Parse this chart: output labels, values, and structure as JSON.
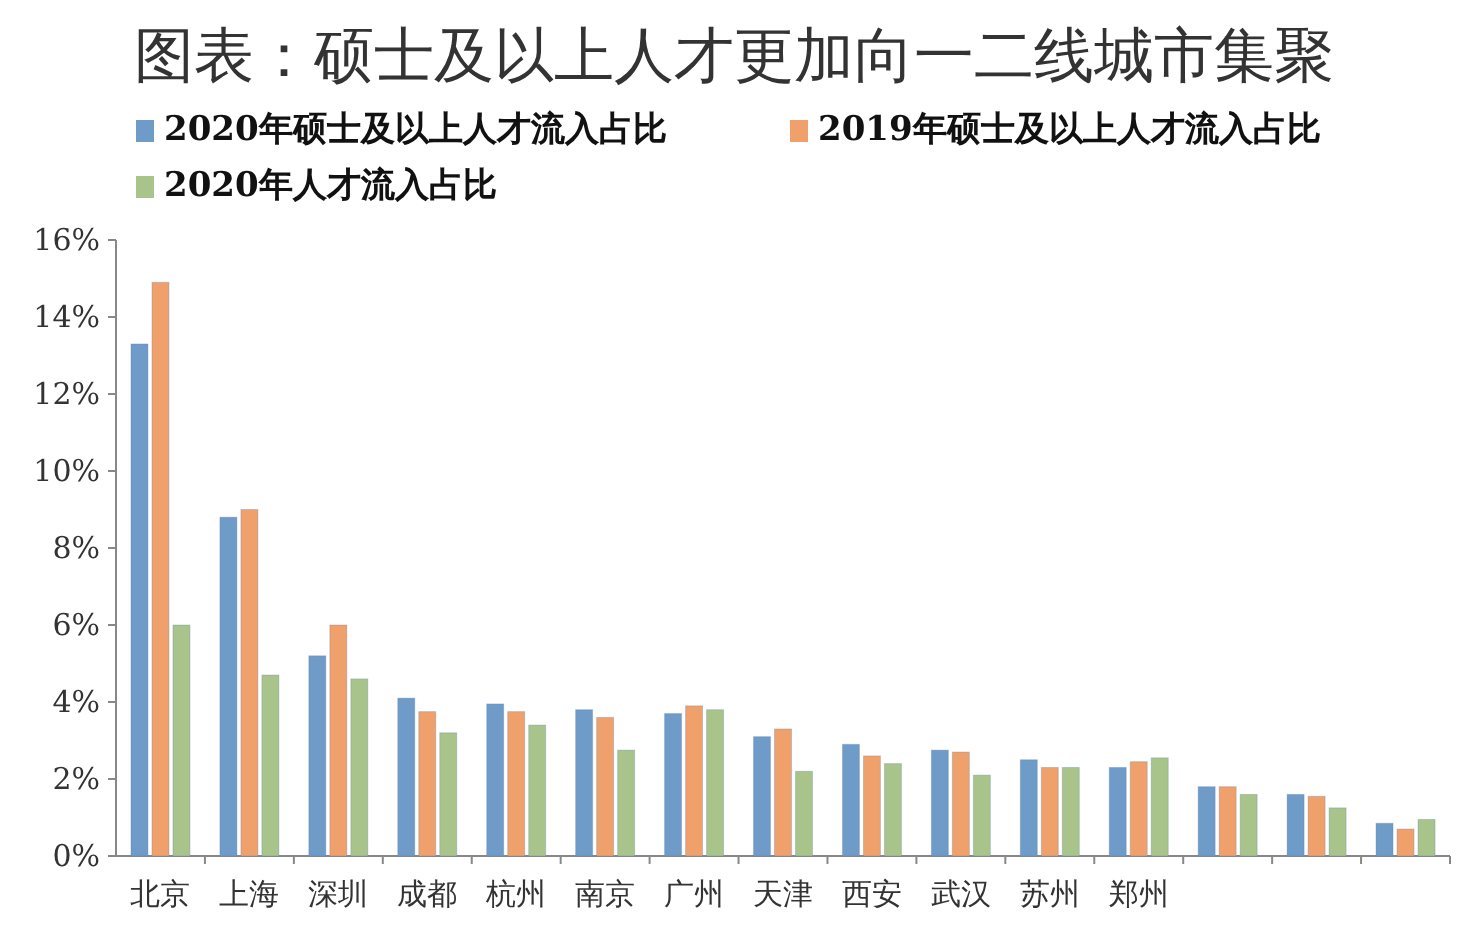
{
  "chart_data": {
    "type": "bar",
    "title": "图表：硕士及以上人才更加向一二线城市集聚",
    "categories": [
      "北京",
      "上海",
      "深圳",
      "成都",
      "杭州",
      "南京",
      "广州",
      "天津",
      "西安",
      "武汉",
      "苏州",
      "郑州",
      null,
      null,
      null
    ],
    "series": [
      {
        "name": "2020年硕士及以上人才流入占比",
        "color": "#6f9bc9",
        "values": [
          13.3,
          8.8,
          5.2,
          4.1,
          3.95,
          3.8,
          3.7,
          3.1,
          2.9,
          2.75,
          2.5,
          2.3,
          1.8,
          1.6,
          0.85
        ]
      },
      {
        "name": "2019年硕士及以上人才流入占比",
        "color": "#f0a06b",
        "values": [
          14.9,
          9.0,
          6.0,
          3.75,
          3.75,
          3.6,
          3.9,
          3.3,
          2.6,
          2.7,
          2.3,
          2.45,
          1.8,
          1.55,
          0.7
        ]
      },
      {
        "name": "2020年人才流入占比",
        "color": "#a8c48a",
        "values": [
          6.0,
          4.7,
          4.6,
          3.2,
          3.4,
          2.75,
          3.8,
          2.2,
          2.4,
          2.1,
          2.3,
          2.55,
          1.6,
          1.25,
          0.95
        ]
      }
    ],
    "ylim": [
      0,
      16
    ],
    "yticks": [
      {
        "value": 0,
        "label": "0%"
      },
      {
        "value": 2,
        "label": "2%"
      },
      {
        "value": 4,
        "label": "4%"
      },
      {
        "value": 6,
        "label": "6%"
      },
      {
        "value": 8,
        "label": "8%"
      },
      {
        "value": 10,
        "label": "10%"
      },
      {
        "value": 12,
        "label": "12%"
      },
      {
        "value": 14,
        "label": "14%"
      },
      {
        "value": 16,
        "label": "16%"
      }
    ],
    "grid": false,
    "legend": "top"
  }
}
